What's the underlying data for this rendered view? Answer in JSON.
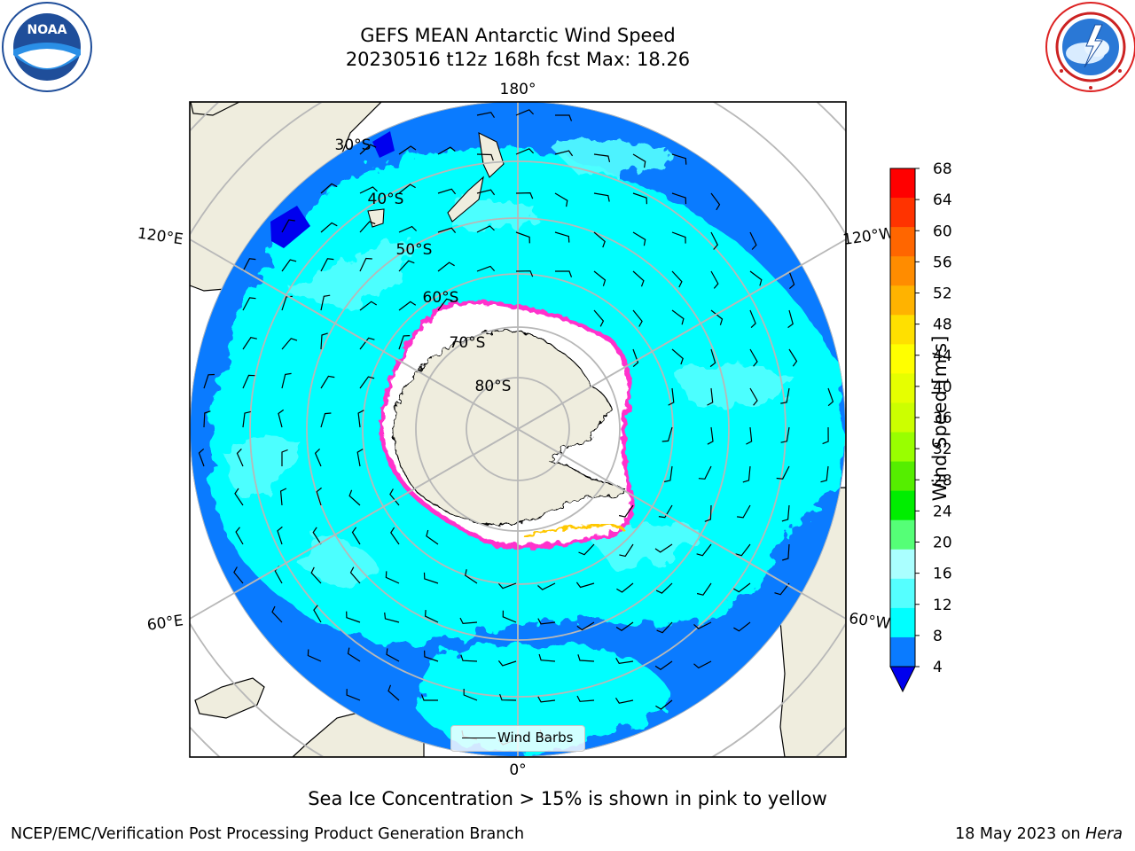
{
  "title": {
    "line1": "GEFS MEAN Antarctic Wind Speed",
    "line2": "20230516 t12z 168h fcst   Max: 18.26"
  },
  "map": {
    "projection": "south polar stereographic",
    "longitude_labels": [
      "180°",
      "120°E",
      "120°W",
      "60°E",
      "60°W",
      "0°"
    ],
    "latitude_labels": [
      "30°S",
      "40°S",
      "50°S",
      "60°S",
      "70°S",
      "80°S"
    ],
    "fill_colors": {
      "ocean_low": "#0a7bff",
      "ocean_mid": "#00ffff",
      "ocean_high": "#55ffff",
      "land": "#efedde",
      "ice_edge": "#ff33cc",
      "ice_fill": "#ffffff",
      "strong_spot": "#0000ee"
    }
  },
  "legend": {
    "wind_barbs_label": "Wind Barbs"
  },
  "colorbar": {
    "title": "Wind Speed [m/s]",
    "tick_labels": [
      "68",
      "64",
      "60",
      "56",
      "52",
      "48",
      "44",
      "40",
      "36",
      "32",
      "28",
      "24",
      "20",
      "16",
      "12",
      "8",
      "4"
    ],
    "colors_top_to_bottom": [
      "#ff0000",
      "#ff3300",
      "#ff6600",
      "#ff8c00",
      "#ffb300",
      "#ffe000",
      "#ffff00",
      "#e6ff00",
      "#ccff00",
      "#99ff00",
      "#55ee00",
      "#00ee00",
      "#55ff77",
      "#aaffff",
      "#55ffff",
      "#00ffff",
      "#0a7bff"
    ],
    "extend_color": "#0000ee"
  },
  "footer": {
    "note": "Sea Ice Concentration > 15% is shown in pink to yellow",
    "left": "NCEP/EMC/Verification Post Processing Product Generation Branch",
    "right_date": "18 May 2023 on ",
    "right_machine": "Hera"
  },
  "logos": {
    "noaa_text": "NOAA"
  }
}
